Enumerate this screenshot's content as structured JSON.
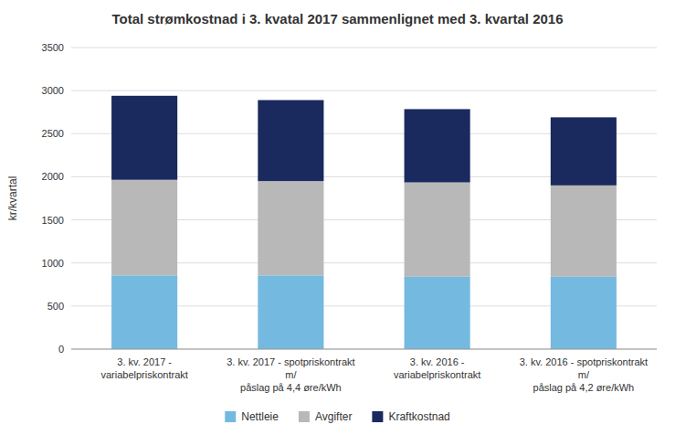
{
  "chart_data": {
    "type": "bar",
    "stacked": true,
    "title": "Total strømkostnad i 3. kvatal 2017 sammenlignet med 3. kvartal 2016",
    "ylabel": "kr/kvartal",
    "categories": [
      "3. kv. 2017 - variabelpriskontrakt",
      "3. kv. 2017 - spotpriskontrakt m/\npåslag på 4,4 øre/kWh",
      "3. kv. 2016 - variabelpriskontrakt",
      "3. kv. 2016 - spotpriskontrakt m/\npåslag på 4,2 øre/kWh"
    ],
    "series": [
      {
        "name": "Nettleie",
        "color": "#74b9e0",
        "values": [
          855,
          855,
          840,
          840
        ]
      },
      {
        "name": "Avgifter",
        "color": "#b8b8b8",
        "values": [
          1110,
          1095,
          1095,
          1060
        ]
      },
      {
        "name": "Kraftkostnad",
        "color": "#1a2a5e",
        "values": [
          975,
          940,
          850,
          790
        ]
      }
    ],
    "ylim": [
      0,
      3500
    ],
    "yticks": [
      0,
      500,
      1000,
      1500,
      2000,
      2500,
      3000,
      3500
    ],
    "grid": true,
    "legend": "bottom"
  }
}
